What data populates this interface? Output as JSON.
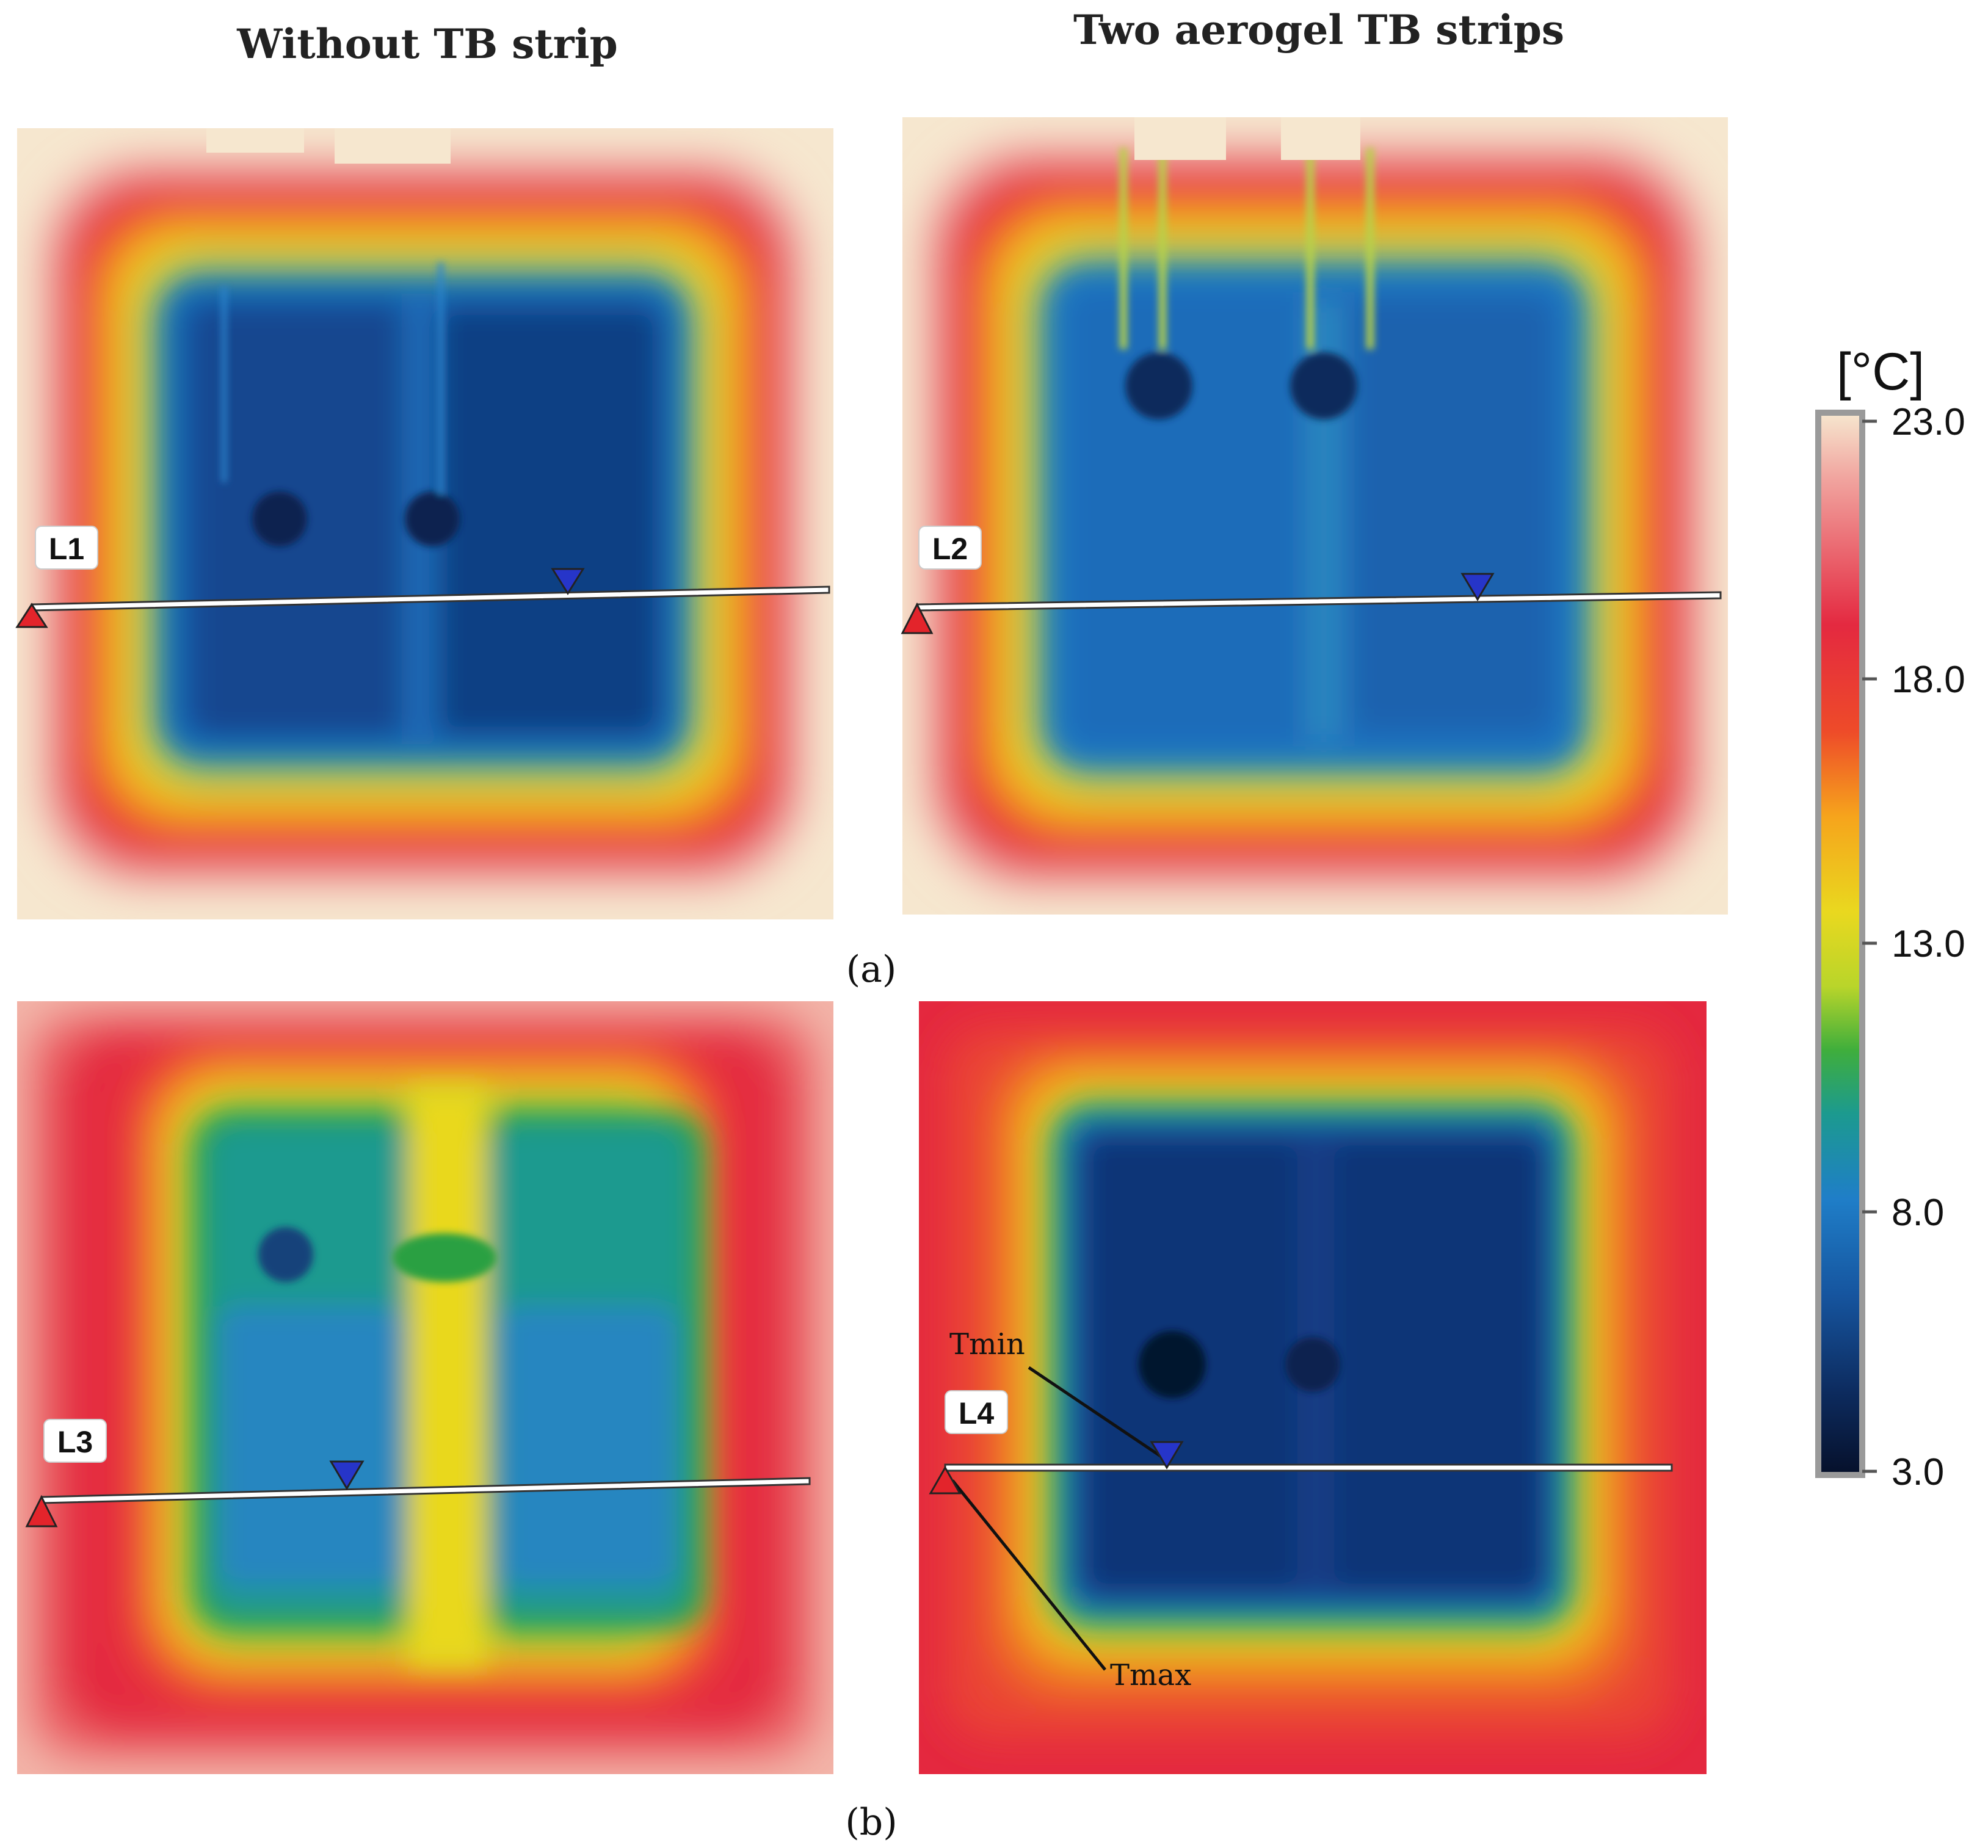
{
  "header": {
    "left_title": "Without TB strip",
    "right_title": "Two aerogel TB strips"
  },
  "rows": {
    "a_label": "(a)",
    "b_label": "(b)"
  },
  "thermograms": [
    {
      "id": "a-left",
      "line_label": "L1"
    },
    {
      "id": "a-right",
      "line_label": "L2"
    },
    {
      "id": "b-left",
      "line_label": "L3"
    },
    {
      "id": "b-right",
      "line_label": "L4",
      "annotations": [
        "Tmin",
        "Tmax"
      ]
    }
  ],
  "color_scale": {
    "unit": "[°C]",
    "ticks": [
      "23.0",
      "18.0",
      "13.0",
      "8.0",
      "3.0"
    ],
    "min": 3.0,
    "max": 23.0,
    "stops": [
      "#f6e7cf",
      "#f1a6a0",
      "#e42940",
      "#ee4b29",
      "#f6a41c",
      "#e9d81f",
      "#b9d52a",
      "#3fae3c",
      "#1c9a8f",
      "#1f7ec8",
      "#16559f",
      "#0d2c60",
      "#06102a"
    ]
  },
  "marker_colors": {
    "max": "#e3242b",
    "min": "#2635c9",
    "line": "#ffffff"
  }
}
